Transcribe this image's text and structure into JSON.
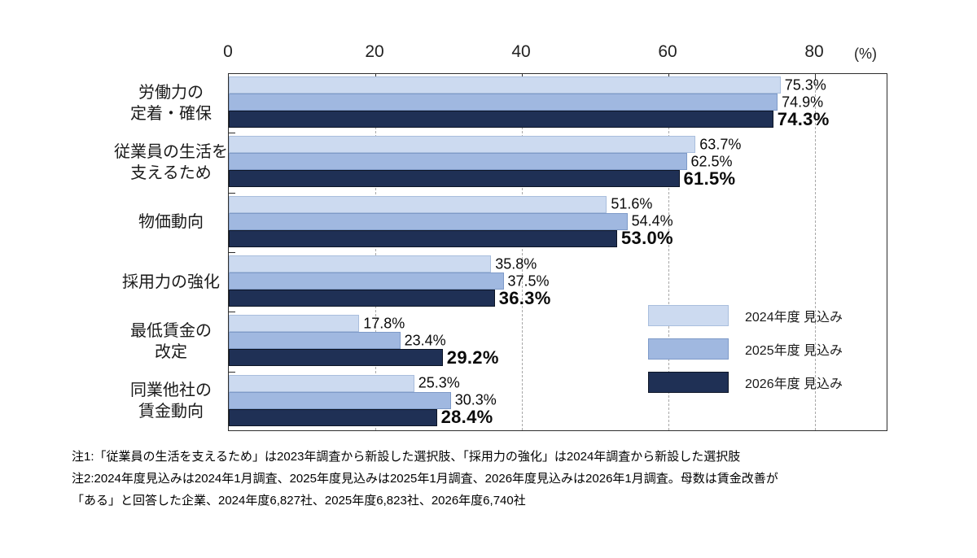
{
  "chart_data": {
    "type": "bar",
    "orientation": "horizontal",
    "unit_label": "(%)",
    "value_suffix": "%",
    "x_axis": {
      "ticks": [
        0,
        20,
        40,
        60,
        80
      ],
      "max": 90,
      "gridlines": [
        20,
        40,
        60,
        80
      ],
      "grid": "dashed"
    },
    "categories": [
      [
        "労働力の",
        "定着・確保"
      ],
      [
        "従業員の生活を",
        "支えるため"
      ],
      [
        "物価動向"
      ],
      [
        "採用力の強化"
      ],
      [
        "最低賃金の",
        "改定"
      ],
      [
        "同業他社の",
        "賃金動向"
      ]
    ],
    "series": [
      {
        "name": "2024年度 見込み",
        "color": "#ccdaf0",
        "border_color": "#a9bedd",
        "emphasis": false,
        "values": [
          75.3,
          63.7,
          51.6,
          35.8,
          17.8,
          25.3
        ]
      },
      {
        "name": "2025年度 見込み",
        "color": "#a0b8e0",
        "border_color": "#7e9ac8",
        "emphasis": false,
        "values": [
          74.9,
          62.5,
          54.4,
          37.5,
          23.4,
          30.3
        ]
      },
      {
        "name": "2026年度 見込み",
        "color": "#1f3055",
        "border_color": "#0d1526",
        "emphasis": true,
        "values": [
          74.3,
          61.5,
          53.0,
          36.3,
          29.2,
          28.4
        ]
      }
    ],
    "legend_position": "inside-right"
  },
  "notes": {
    "line1": "注1:「従業員の生活を支えるため」は2023年調査から新設した選択肢、「採用力の強化」は2024年調査から新設した選択肢",
    "line2": "注2:2024年度見込みは2024年1月調査、2025年度見込みは2025年1月調査、2026年度見込みは2026年1月調査。母数は賃金改善が",
    "line3": "「ある」と回答した企業、2024年度6,827社、2025年度6,823社、2026年度6,740社"
  }
}
